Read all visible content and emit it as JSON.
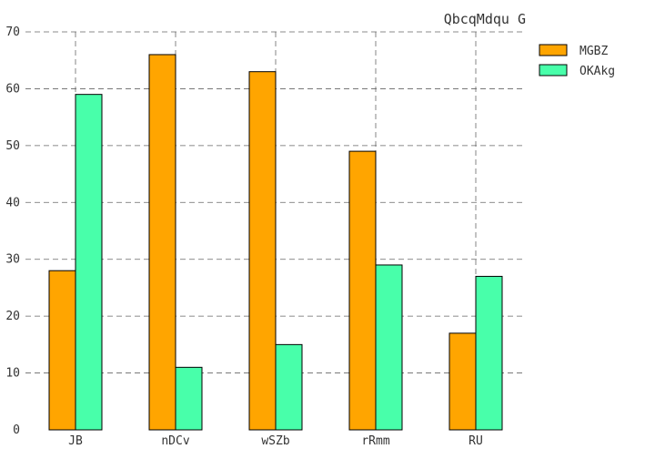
{
  "chart_data": {
    "type": "bar",
    "title": "QbcqMdqu G",
    "xlabel": "",
    "ylabel": "",
    "categories": [
      "JB",
      "nDCv",
      "wSZb",
      "rRmm",
      "RU"
    ],
    "series": [
      {
        "name": "MGBZ",
        "values": [
          28,
          66,
          63,
          49,
          17
        ],
        "color": "#ffa500"
      },
      {
        "name": "OKAkg",
        "values": [
          59,
          11,
          15,
          29,
          27
        ],
        "color": "#48ffaa"
      }
    ],
    "ylim": [
      0,
      70
    ],
    "yticks": [
      0,
      10,
      20,
      30,
      40,
      50,
      60,
      70
    ],
    "grid": true,
    "legend": "top-right"
  }
}
